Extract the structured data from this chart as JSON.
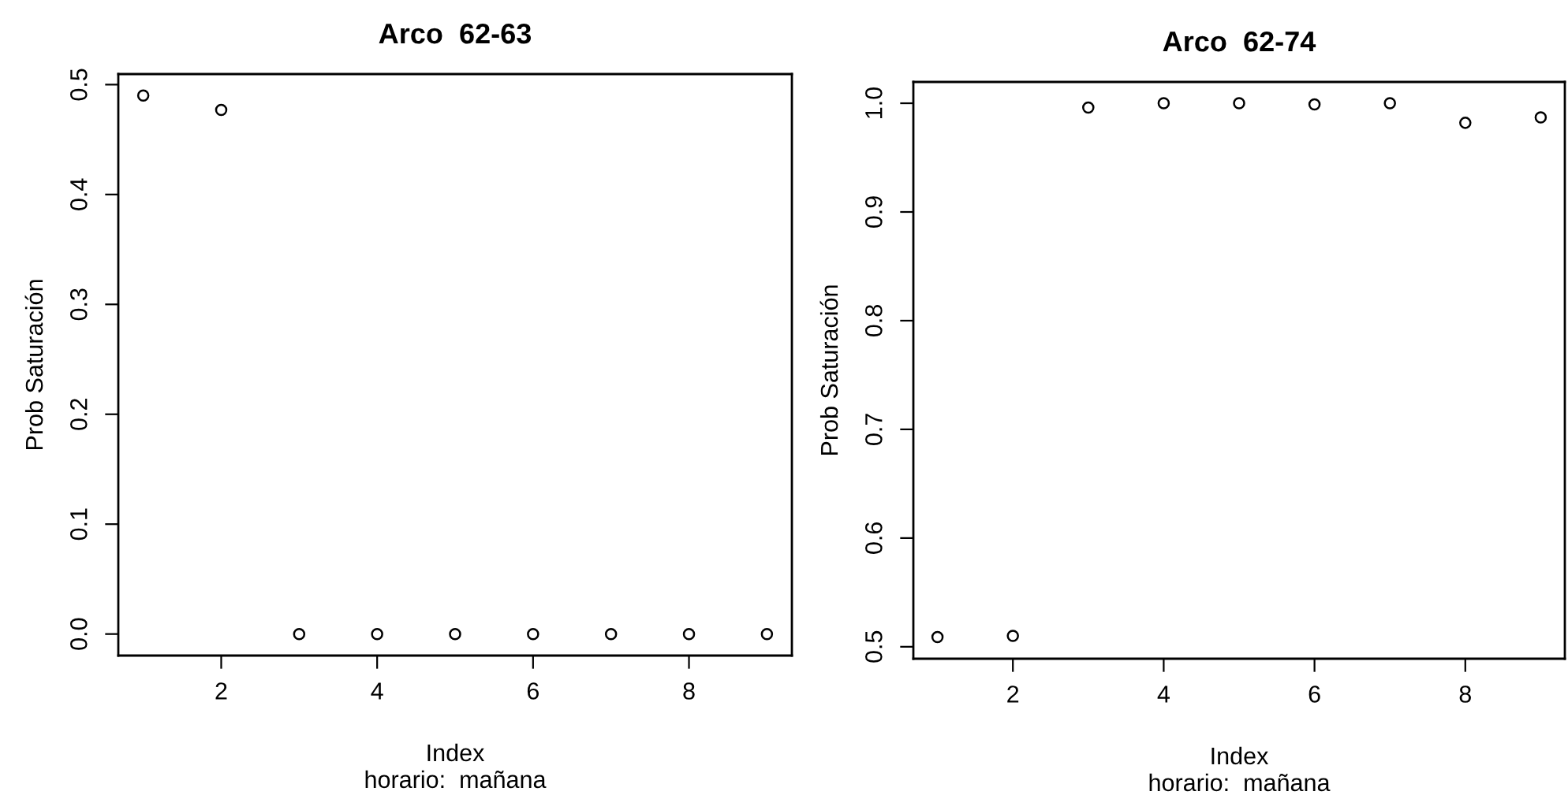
{
  "chart_data": [
    {
      "type": "scatter",
      "title": "Arco  62-63",
      "xlabel": "Index",
      "ylabel": "Prob Saturación",
      "annotations": [
        "horario:  mañana"
      ],
      "x": [
        1,
        2,
        3,
        4,
        5,
        6,
        7,
        8,
        9
      ],
      "values": [
        0.49,
        0.477,
        0,
        0,
        0,
        0,
        0,
        0,
        0
      ],
      "color": "#000000",
      "marker": "circle",
      "xlim": [
        0.68,
        9.32
      ],
      "xticks": [
        2,
        4,
        6,
        8
      ],
      "ylim": [
        -0.0196,
        0.5096
      ],
      "yticks": [
        {
          "value": 0,
          "label": "0.0"
        },
        0.1,
        0.2,
        0.3,
        0.4,
        0.5
      ],
      "grid": false,
      "legend": false
    },
    {
      "type": "scatter",
      "title": "Arco  62-74",
      "xlabel": "Index",
      "ylabel": "Prob Saturación",
      "annotations": [
        "horario:  mañana"
      ],
      "x": [
        1,
        2,
        3,
        4,
        5,
        6,
        7,
        8,
        9
      ],
      "values": [
        0.509,
        0.51,
        0.996,
        1.0,
        1.0,
        0.999,
        1.0,
        0.982,
        0.987
      ],
      "color": "#000000",
      "marker": "circle",
      "xlim": [
        0.68,
        9.32
      ],
      "xticks": [
        2,
        4,
        6,
        8
      ],
      "ylim": [
        0.489,
        1.0196
      ],
      "yticks": [
        0.5,
        0.6,
        0.7,
        0.8,
        0.9,
        {
          "value": 1,
          "label": "1.0"
        }
      ],
      "grid": false,
      "legend": false
    }
  ]
}
